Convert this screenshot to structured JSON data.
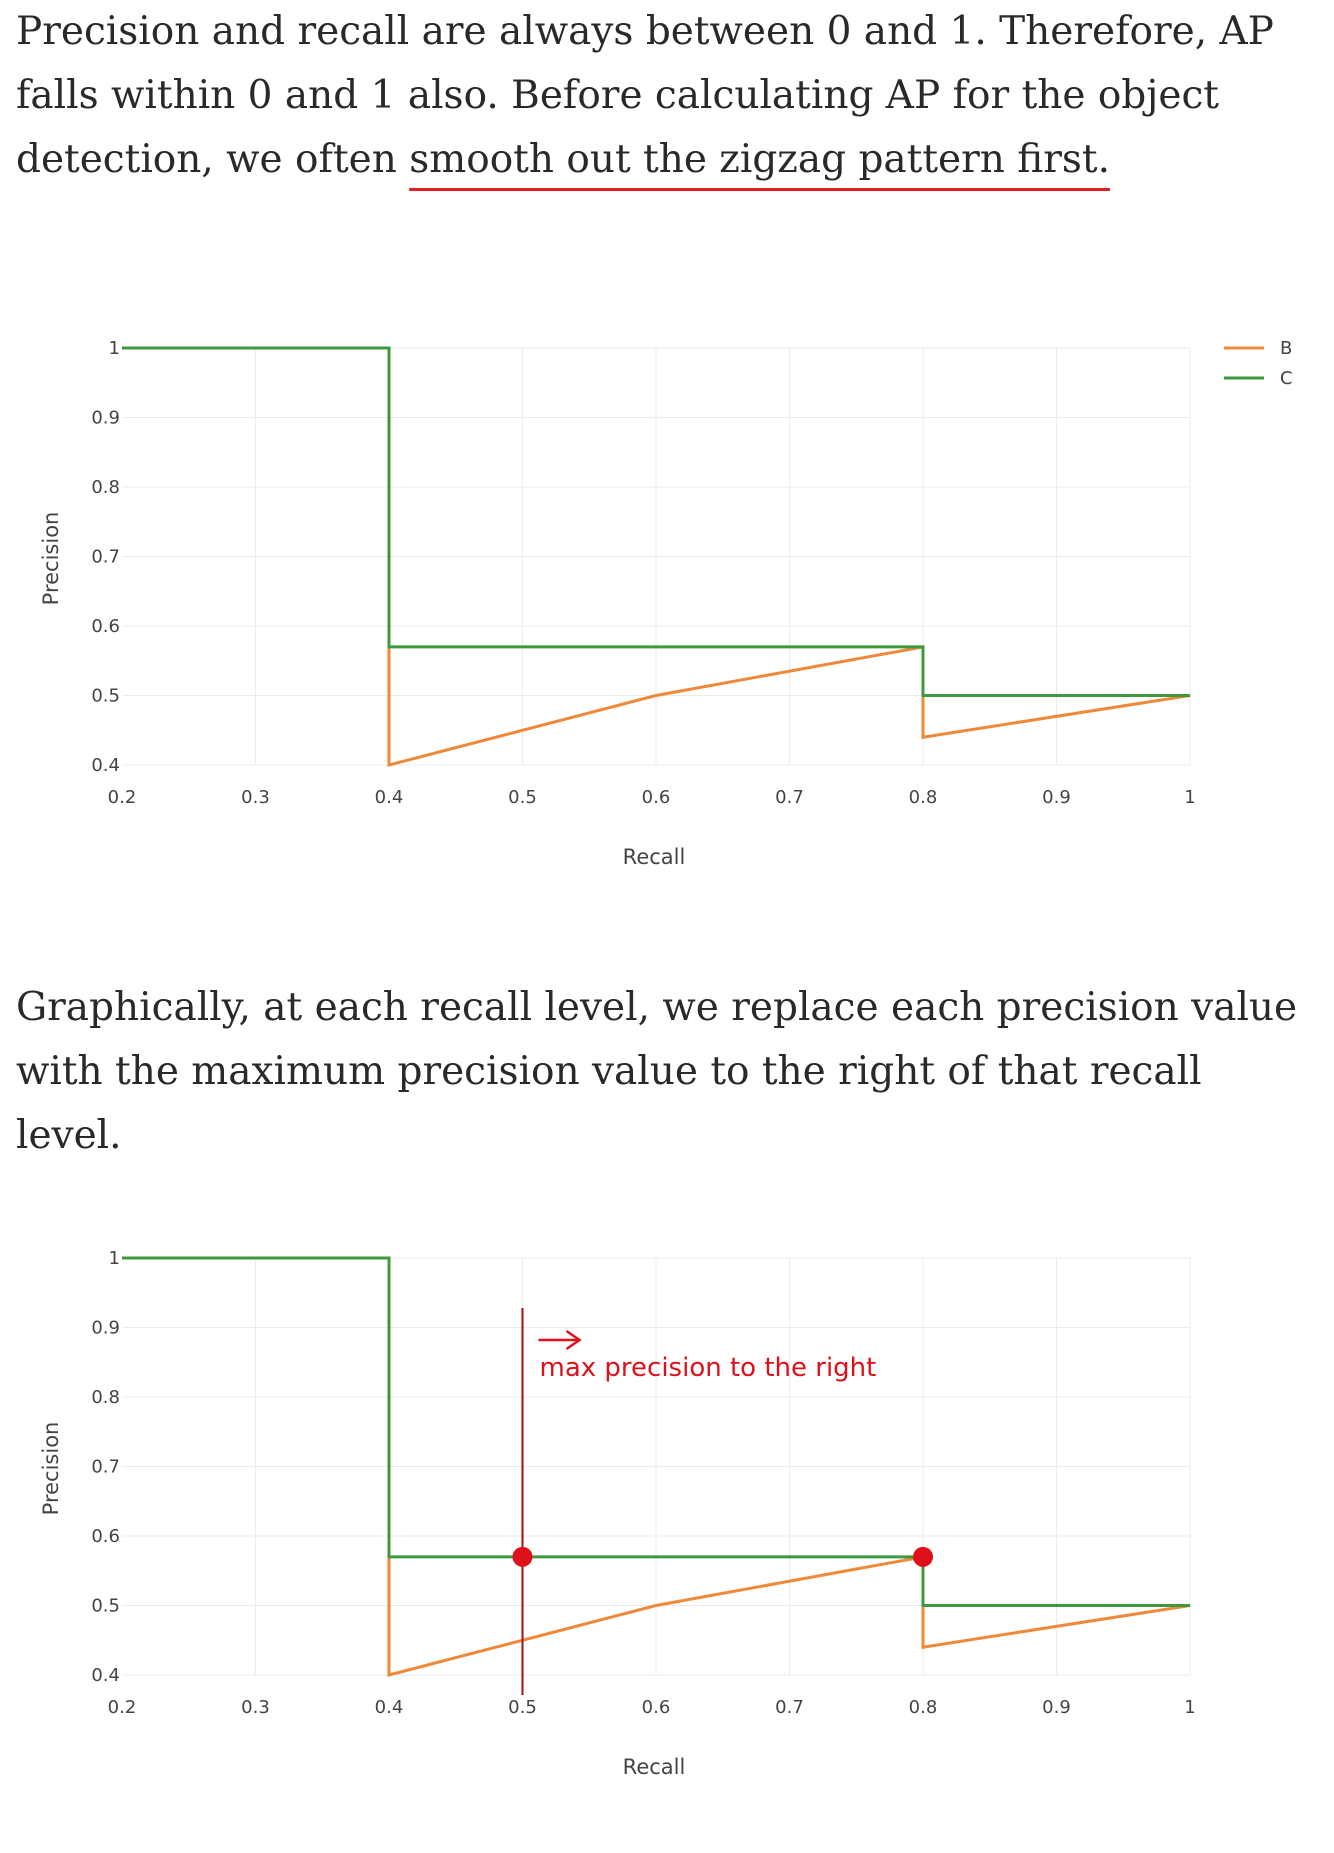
{
  "article": {
    "para1": {
      "text_before": "Precision and recall are always between 0 and 1. Therefore, AP falls within 0 and 1 also. Before calculating AP for the object detection, we often ",
      "text_underlined": "smooth out the zigzag pattern first."
    },
    "para2": "Graphically, at each recall level, we replace each precision value with the maximum precision value to the right of that recall level."
  },
  "chart_data": [
    {
      "type": "line",
      "xlabel": "Recall",
      "ylabel": "Precision",
      "xlim": [
        0.2,
        1.0
      ],
      "ylim": [
        0.4,
        1.0
      ],
      "x_ticks": [
        "0.2",
        "0.3",
        "0.4",
        "0.5",
        "0.6",
        "0.7",
        "0.8",
        "0.9",
        "1"
      ],
      "y_ticks": [
        "0.4",
        "0.5",
        "0.6",
        "0.7",
        "0.8",
        "0.9",
        "1"
      ],
      "grid": true,
      "legend_position": "top-right",
      "series": [
        {
          "name": "B",
          "color": "#f0883a",
          "points": [
            [
              0.2,
              1.0
            ],
            [
              0.4,
              1.0
            ],
            [
              0.4,
              0.57
            ],
            [
              0.4,
              0.4
            ],
            [
              0.6,
              0.5
            ],
            [
              0.8,
              0.57
            ],
            [
              0.8,
              0.44
            ],
            [
              1.0,
              0.5
            ]
          ]
        },
        {
          "name": "C",
          "color": "#3c9a3c",
          "points": [
            [
              0.2,
              1.0
            ],
            [
              0.4,
              1.0
            ],
            [
              0.4,
              0.57
            ],
            [
              0.8,
              0.57
            ],
            [
              0.8,
              0.5
            ],
            [
              1.0,
              0.5
            ]
          ]
        }
      ]
    },
    {
      "type": "line",
      "xlabel": "Recall",
      "ylabel": "Precision",
      "xlim": [
        0.2,
        1.0
      ],
      "ylim": [
        0.4,
        1.0
      ],
      "x_ticks": [
        "0.2",
        "0.3",
        "0.4",
        "0.5",
        "0.6",
        "0.7",
        "0.8",
        "0.9",
        "1"
      ],
      "y_ticks": [
        "0.4",
        "0.5",
        "0.6",
        "0.7",
        "0.8",
        "0.9",
        "1"
      ],
      "grid": true,
      "series": [
        {
          "color": "#f0883a",
          "points": [
            [
              0.2,
              1.0
            ],
            [
              0.4,
              1.0
            ],
            [
              0.4,
              0.57
            ],
            [
              0.4,
              0.4
            ],
            [
              0.6,
              0.5
            ],
            [
              0.8,
              0.57
            ],
            [
              0.8,
              0.44
            ],
            [
              1.0,
              0.5
            ]
          ]
        },
        {
          "color": "#3c9a3c",
          "points": [
            [
              0.2,
              1.0
            ],
            [
              0.4,
              1.0
            ],
            [
              0.4,
              0.57
            ],
            [
              0.8,
              0.57
            ],
            [
              0.8,
              0.5
            ],
            [
              1.0,
              0.5
            ]
          ]
        }
      ],
      "annotation": {
        "text": "max precision to the right",
        "color": "#e0101a",
        "vline_x": 0.5,
        "arrow_direction": "right",
        "marker_points": [
          [
            0.5,
            0.57
          ],
          [
            0.8,
            0.57
          ]
        ]
      }
    }
  ]
}
